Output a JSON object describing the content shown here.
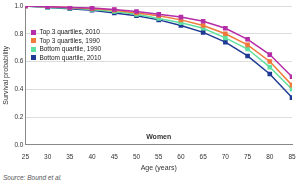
{
  "chart_data": {
    "type": "line",
    "annotation": "Women",
    "source": "Source: Bound et al.",
    "x_label": "Age (years)",
    "y_label": "Survival probability",
    "x": [
      25,
      30,
      35,
      40,
      45,
      50,
      55,
      60,
      65,
      70,
      75,
      80,
      85
    ],
    "xlim": [
      25,
      85
    ],
    "xticks": [
      25,
      30,
      35,
      40,
      45,
      50,
      55,
      60,
      65,
      70,
      75,
      80,
      85
    ],
    "ylim": [
      0,
      1
    ],
    "yticks": [
      {
        "value": 0,
        "label": "0.0"
      },
      0.2,
      0.4,
      0.6,
      0.8,
      {
        "value": 1,
        "label": "1.0"
      }
    ],
    "grid": true,
    "legend": "upper left",
    "marker": "square",
    "series": [
      {
        "name": "Top 3 quartiles, 2010",
        "color": "#b52ea8",
        "values": [
          1.0,
          0.995,
          0.99,
          0.985,
          0.975,
          0.96,
          0.94,
          0.92,
          0.89,
          0.84,
          0.76,
          0.65,
          0.49
        ]
      },
      {
        "name": "Top 3 quartiles, 1990",
        "color": "#f07a3a",
        "values": [
          1.0,
          0.995,
          0.99,
          0.98,
          0.97,
          0.95,
          0.93,
          0.9,
          0.86,
          0.8,
          0.72,
          0.6,
          0.43
        ]
      },
      {
        "name": "Bottom quartile, 1990",
        "color": "#5ee0a0",
        "values": [
          1.0,
          0.99,
          0.985,
          0.975,
          0.96,
          0.94,
          0.91,
          0.88,
          0.84,
          0.77,
          0.69,
          0.56,
          0.4
        ]
      },
      {
        "name": "Bottom quartile, 2010",
        "color": "#1f3a93",
        "values": [
          1.0,
          0.99,
          0.98,
          0.97,
          0.95,
          0.93,
          0.9,
          0.86,
          0.81,
          0.74,
          0.64,
          0.51,
          0.34
        ]
      }
    ]
  }
}
